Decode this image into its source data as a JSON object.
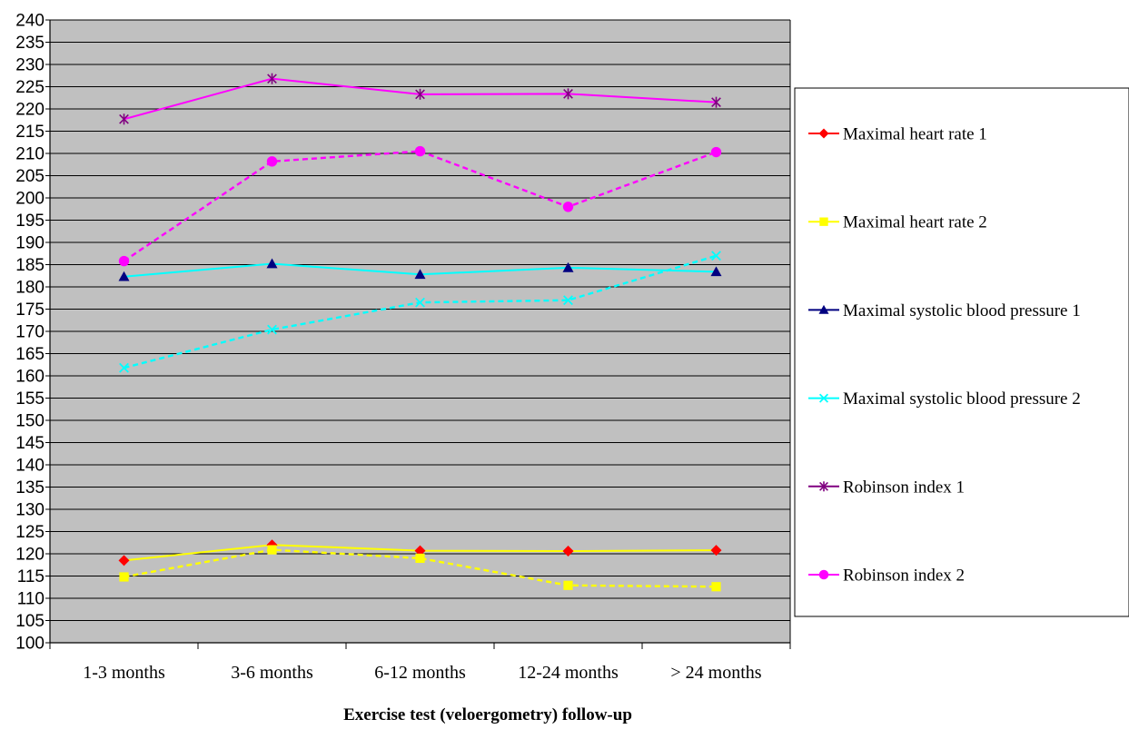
{
  "chart_data": {
    "type": "line",
    "title": "",
    "xlabel": "Exercise test (veloergometry) follow-up",
    "ylabel": "",
    "categories": [
      "1-3 months",
      "3-6 months",
      "6-12 months",
      "12-24 months",
      "> 24 months"
    ],
    "ylim": [
      100,
      240
    ],
    "ytick_step": 5,
    "grid": true,
    "plot_background": "#c0c0c0",
    "legend_position": "right",
    "series": [
      {
        "name": "Maximal heart rate 1",
        "values": [
          118.5,
          122.0,
          120.7,
          120.6,
          120.8
        ],
        "line_color": "#ffff00",
        "marker_color": "#ff0000",
        "marker": "diamond",
        "dash": false
      },
      {
        "name": "Maximal heart rate 2",
        "values": [
          114.8,
          120.9,
          119.0,
          112.9,
          112.6
        ],
        "line_color": "#ffff00",
        "marker_color": "#ffff00",
        "marker": "square",
        "dash": true
      },
      {
        "name": "Maximal systolic blood pressure 1",
        "values": [
          182.3,
          185.2,
          182.8,
          184.3,
          183.4
        ],
        "line_color": "#00ffff",
        "marker_color": "#000080",
        "marker": "triangle",
        "dash": false
      },
      {
        "name": "Maximal systolic blood pressure 2",
        "values": [
          161.8,
          170.4,
          176.5,
          177.0,
          187.0
        ],
        "line_color": "#00ffff",
        "marker_color": "#00ffff",
        "marker": "x",
        "dash": true
      },
      {
        "name": "Robinson index 1",
        "values": [
          217.7,
          226.8,
          223.3,
          223.4,
          221.5
        ],
        "line_color": "#ff00ff",
        "marker_color": "#800080",
        "marker": "asterisk",
        "dash": false
      },
      {
        "name": "Robinson index 2",
        "values": [
          185.8,
          208.2,
          210.5,
          198.0,
          210.3
        ],
        "line_color": "#ff00ff",
        "marker_color": "#ff00ff",
        "marker": "circle",
        "dash": true
      }
    ]
  }
}
